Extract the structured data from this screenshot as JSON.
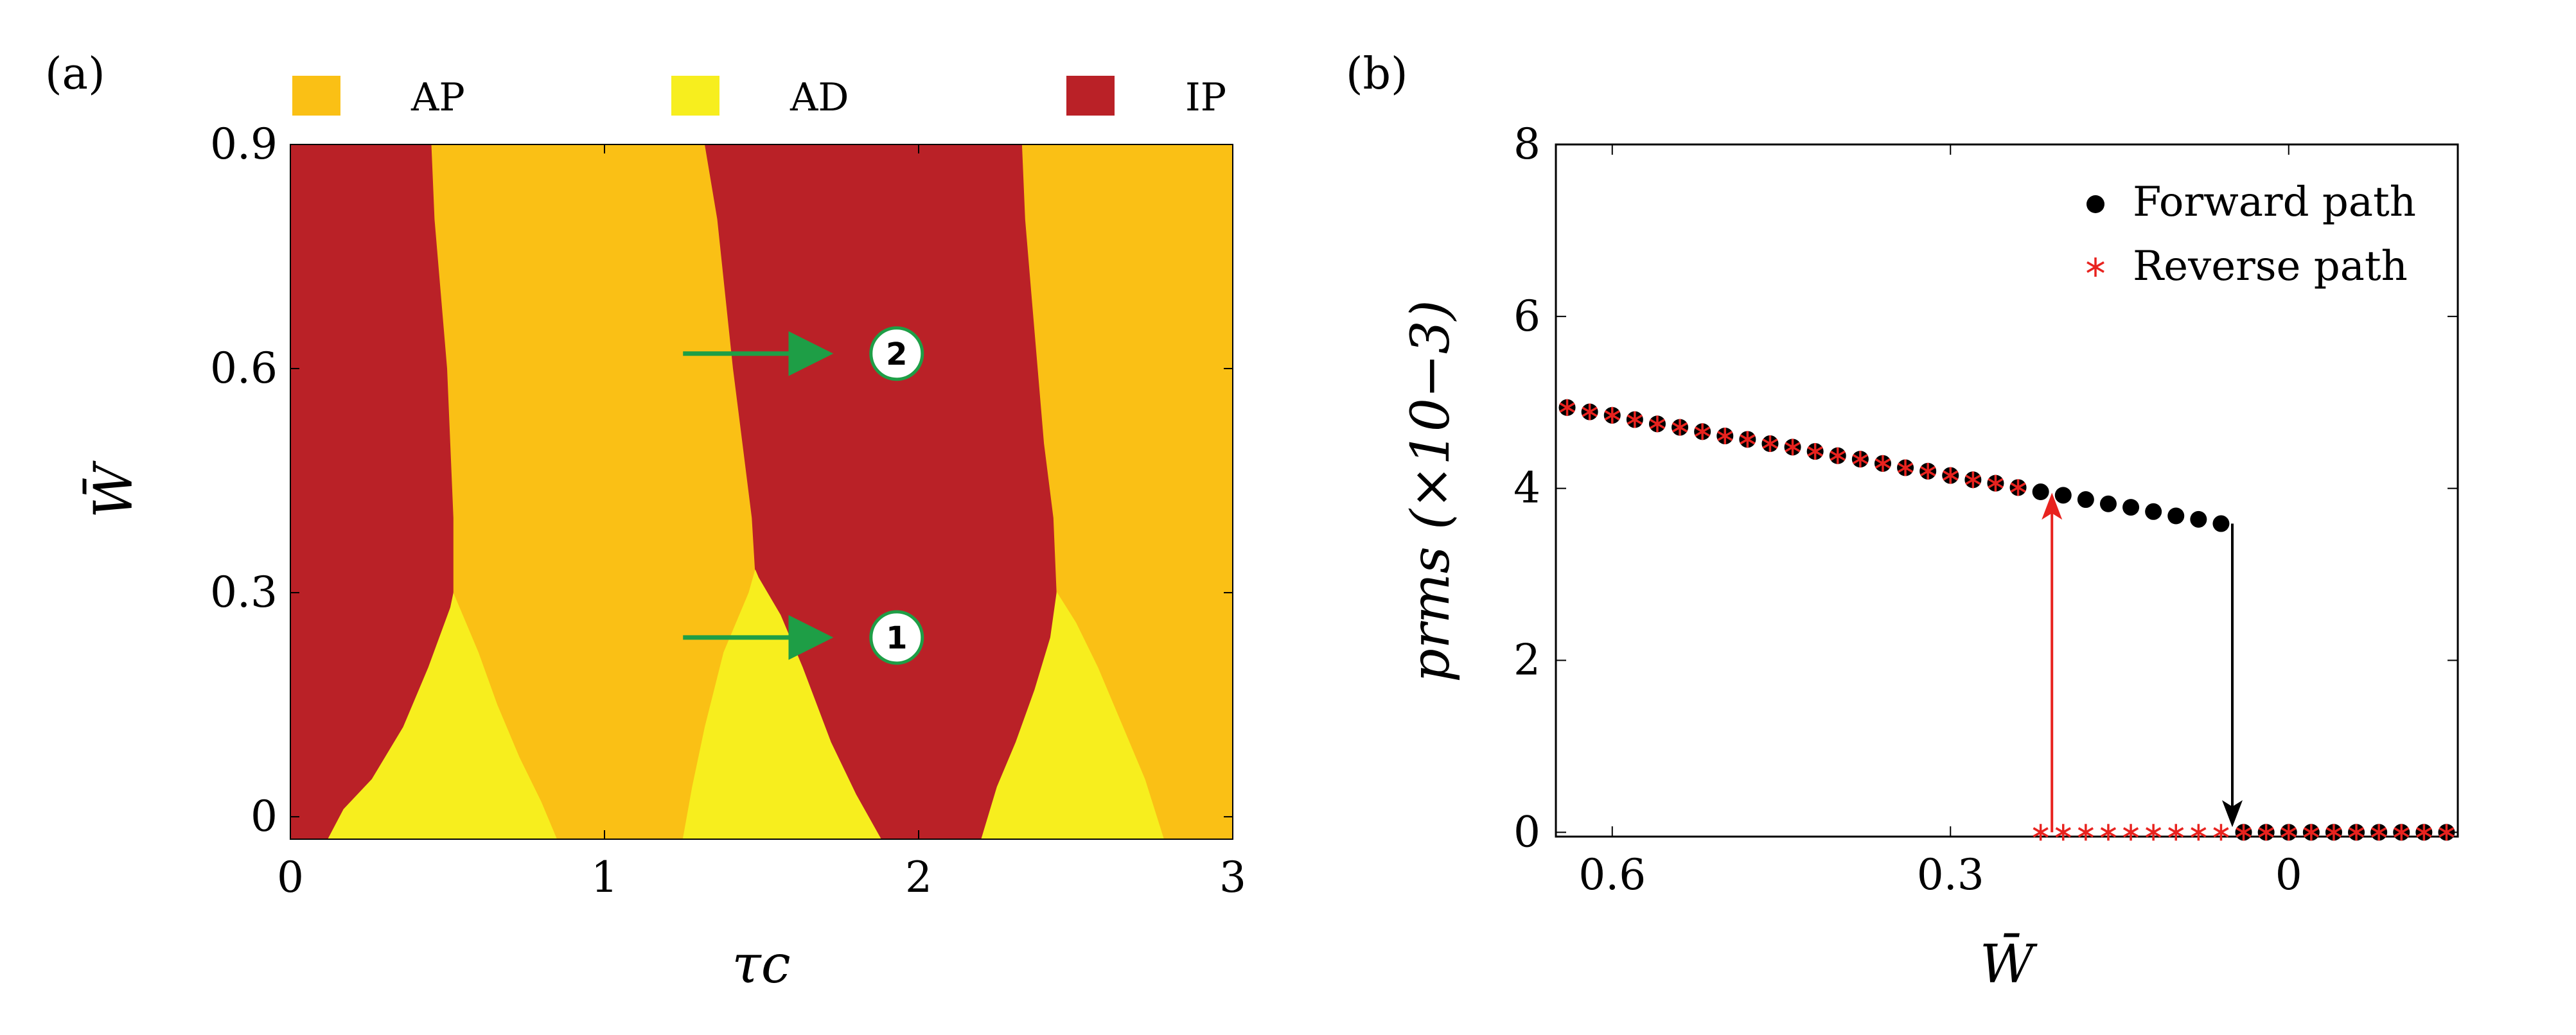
{
  "panel_labels": {
    "a": "(a)",
    "b": "(b)"
  },
  "icons": {
    "arrow_marker_1": "1",
    "arrow_marker_2": "2"
  },
  "chart_data": [
    {
      "type": "heatmap",
      "panel": "(a)",
      "xlabel": "τc",
      "ylabel": "W̄",
      "xlim": [
        0,
        3
      ],
      "ylim": [
        -0.03,
        0.9
      ],
      "xticks": [
        0,
        1,
        2,
        3
      ],
      "xtick_labels": [
        "0",
        "1",
        "2",
        "3"
      ],
      "yticks": [
        0,
        0.3,
        0.6,
        0.9
      ],
      "ytick_labels": [
        "0",
        "0.3",
        "0.6",
        "0.9"
      ],
      "legend": [
        {
          "label": "AP",
          "color": "#FAC015"
        },
        {
          "label": "AD",
          "color": "#F7EE1E"
        },
        {
          "label": "IP",
          "color": "#BA2127"
        }
      ],
      "legend_position": "top",
      "colors": {
        "IP": "#BA2127",
        "AP": "#FAC015",
        "AD": "#F7EE1E",
        "arrow": "#1E9E46"
      },
      "regions": [
        {
          "phase": "IP",
          "polygon": [
            [
              0,
              -0.03
            ],
            [
              0,
              0.9
            ],
            [
              0.45,
              0.9
            ],
            [
              0.46,
              0.8
            ],
            [
              0.48,
              0.7
            ],
            [
              0.5,
              0.6
            ],
            [
              0.51,
              0.5
            ],
            [
              0.52,
              0.4
            ],
            [
              0.52,
              0.3
            ],
            [
              0.51,
              0.28
            ],
            [
              0.44,
              0.2
            ],
            [
              0.36,
              0.12
            ],
            [
              0.26,
              0.05
            ],
            [
              0.17,
              0.01
            ],
            [
              0.12,
              -0.03
            ]
          ]
        },
        {
          "phase": "AD",
          "polygon": [
            [
              0.12,
              -0.03
            ],
            [
              0.17,
              0.01
            ],
            [
              0.26,
              0.05
            ],
            [
              0.36,
              0.12
            ],
            [
              0.44,
              0.2
            ],
            [
              0.51,
              0.28
            ],
            [
              0.52,
              0.3
            ],
            [
              0.55,
              0.27
            ],
            [
              0.6,
              0.22
            ],
            [
              0.66,
              0.15
            ],
            [
              0.73,
              0.08
            ],
            [
              0.8,
              0.02
            ],
            [
              0.85,
              -0.03
            ]
          ]
        },
        {
          "phase": "AP",
          "polygon": [
            [
              0.45,
              0.9
            ],
            [
              1.32,
              0.9
            ],
            [
              1.36,
              0.8
            ],
            [
              1.38,
              0.72
            ],
            [
              1.41,
              0.6
            ],
            [
              1.44,
              0.5
            ],
            [
              1.47,
              0.4
            ],
            [
              1.48,
              0.33
            ],
            [
              1.46,
              0.3
            ],
            [
              1.38,
              0.22
            ],
            [
              1.32,
              0.12
            ],
            [
              1.28,
              0.04
            ],
            [
              1.25,
              -0.03
            ],
            [
              0.85,
              -0.03
            ],
            [
              0.8,
              0.02
            ],
            [
              0.73,
              0.08
            ],
            [
              0.66,
              0.15
            ],
            [
              0.6,
              0.22
            ],
            [
              0.55,
              0.27
            ],
            [
              0.52,
              0.3
            ],
            [
              0.52,
              0.4
            ],
            [
              0.51,
              0.5
            ],
            [
              0.5,
              0.6
            ],
            [
              0.48,
              0.7
            ],
            [
              0.46,
              0.8
            ]
          ]
        },
        {
          "phase": "IP",
          "polygon": [
            [
              1.32,
              0.9
            ],
            [
              2.33,
              0.9
            ],
            [
              2.34,
              0.8
            ],
            [
              2.36,
              0.7
            ],
            [
              2.38,
              0.6
            ],
            [
              2.4,
              0.5
            ],
            [
              2.43,
              0.4
            ],
            [
              2.44,
              0.3
            ],
            [
              2.42,
              0.24
            ],
            [
              2.37,
              0.17
            ],
            [
              2.31,
              0.1
            ],
            [
              2.25,
              0.04
            ],
            [
              2.2,
              -0.03
            ],
            [
              1.88,
              -0.03
            ],
            [
              1.8,
              0.03
            ],
            [
              1.72,
              0.1
            ],
            [
              1.63,
              0.2
            ],
            [
              1.56,
              0.27
            ],
            [
              1.49,
              0.32
            ],
            [
              1.48,
              0.33
            ],
            [
              1.47,
              0.4
            ],
            [
              1.44,
              0.5
            ],
            [
              1.41,
              0.6
            ],
            [
              1.38,
              0.72
            ],
            [
              1.36,
              0.8
            ]
          ]
        },
        {
          "phase": "AD",
          "polygon": [
            [
              1.25,
              -0.03
            ],
            [
              1.28,
              0.04
            ],
            [
              1.32,
              0.12
            ],
            [
              1.38,
              0.22
            ],
            [
              1.46,
              0.3
            ],
            [
              1.48,
              0.33
            ],
            [
              1.49,
              0.32
            ],
            [
              1.56,
              0.27
            ],
            [
              1.63,
              0.2
            ],
            [
              1.72,
              0.1
            ],
            [
              1.8,
              0.03
            ],
            [
              1.88,
              -0.03
            ]
          ]
        },
        {
          "phase": "AP",
          "polygon": [
            [
              2.33,
              0.9
            ],
            [
              3,
              0.9
            ],
            [
              3,
              -0.03
            ],
            [
              2.78,
              -0.03
            ],
            [
              2.72,
              0.05
            ],
            [
              2.64,
              0.13
            ],
            [
              2.57,
              0.2
            ],
            [
              2.5,
              0.26
            ],
            [
              2.44,
              0.3
            ],
            [
              2.43,
              0.4
            ],
            [
              2.4,
              0.5
            ],
            [
              2.38,
              0.6
            ],
            [
              2.36,
              0.7
            ],
            [
              2.34,
              0.8
            ]
          ]
        },
        {
          "phase": "AD",
          "polygon": [
            [
              2.2,
              -0.03
            ],
            [
              2.25,
              0.04
            ],
            [
              2.31,
              0.1
            ],
            [
              2.37,
              0.17
            ],
            [
              2.42,
              0.24
            ],
            [
              2.44,
              0.3
            ],
            [
              2.5,
              0.26
            ],
            [
              2.57,
              0.2
            ],
            [
              2.64,
              0.13
            ],
            [
              2.72,
              0.05
            ],
            [
              2.78,
              -0.03
            ]
          ]
        }
      ],
      "annotations": [
        {
          "label": "2",
          "from": [
            1.25,
            0.62
          ],
          "to": [
            1.7,
            0.62
          ],
          "marker_at": [
            1.93,
            0.62
          ]
        },
        {
          "label": "1",
          "from": [
            1.25,
            0.24
          ],
          "to": [
            1.7,
            0.24
          ],
          "marker_at": [
            1.93,
            0.24
          ]
        }
      ]
    },
    {
      "type": "scatter",
      "panel": "(b)",
      "xlabel": "W̄",
      "ylabel": "prms (×10−3)",
      "x_reversed": true,
      "xlim": [
        0.65,
        -0.15
      ],
      "ylim": [
        -0.05,
        8
      ],
      "xticks": [
        0.6,
        0.3,
        0
      ],
      "xtick_labels": [
        "0.6",
        "0.3",
        "0"
      ],
      "yticks": [
        0,
        2,
        4,
        6,
        8
      ],
      "ytick_labels": [
        "0",
        "2",
        "4",
        "6",
        "8"
      ],
      "legend_position": "top-right",
      "grid": false,
      "series": [
        {
          "name": "Forward path",
          "color": "#000000",
          "marker": "circle",
          "x": [
            0.64,
            0.62,
            0.6,
            0.58,
            0.56,
            0.54,
            0.52,
            0.5,
            0.48,
            0.46,
            0.44,
            0.42,
            0.4,
            0.38,
            0.36,
            0.34,
            0.32,
            0.3,
            0.28,
            0.26,
            0.24,
            0.22,
            0.2,
            0.18,
            0.16,
            0.14,
            0.12,
            0.1,
            0.08,
            0.06,
            0.04,
            0.02,
            0.0,
            -0.02,
            -0.04,
            -0.06,
            -0.08,
            -0.1,
            -0.12,
            -0.14
          ],
          "y": [
            4.94,
            4.89,
            4.85,
            4.8,
            4.75,
            4.71,
            4.66,
            4.61,
            4.57,
            4.52,
            4.48,
            4.43,
            4.38,
            4.34,
            4.29,
            4.24,
            4.2,
            4.15,
            4.1,
            4.06,
            4.01,
            3.96,
            3.92,
            3.87,
            3.82,
            3.78,
            3.73,
            3.68,
            3.64,
            3.59,
            0,
            0,
            0,
            0,
            0,
            0,
            0,
            0,
            0,
            0
          ]
        },
        {
          "name": "Reverse path",
          "color": "#E8231F",
          "marker": "asterisk",
          "x": [
            0.64,
            0.62,
            0.6,
            0.58,
            0.56,
            0.54,
            0.52,
            0.5,
            0.48,
            0.46,
            0.44,
            0.42,
            0.4,
            0.38,
            0.36,
            0.34,
            0.32,
            0.3,
            0.28,
            0.26,
            0.24,
            0.22,
            0.2,
            0.18,
            0.16,
            0.14,
            0.12,
            0.1,
            0.08,
            0.06,
            0.04,
            0.02,
            0.0,
            -0.02,
            -0.04,
            -0.06,
            -0.08,
            -0.1,
            -0.12,
            -0.14
          ],
          "y": [
            4.94,
            4.89,
            4.85,
            4.8,
            4.75,
            4.71,
            4.66,
            4.61,
            4.57,
            4.52,
            4.48,
            4.43,
            4.38,
            4.34,
            4.29,
            4.24,
            4.2,
            4.15,
            4.1,
            4.06,
            4.01,
            0,
            0,
            0,
            0,
            0,
            0,
            0,
            0,
            0,
            0,
            0,
            0,
            0,
            0,
            0,
            0,
            0,
            0,
            0
          ]
        }
      ],
      "transitions": [
        {
          "path": "Reverse path",
          "x": 0.21,
          "y_from": 0,
          "y_to": 4.01,
          "color": "#E8231F",
          "direction": "up"
        },
        {
          "path": "Forward path",
          "x": 0.05,
          "y_from": 3.59,
          "y_to": 0,
          "color": "#000000",
          "direction": "down"
        }
      ]
    }
  ]
}
